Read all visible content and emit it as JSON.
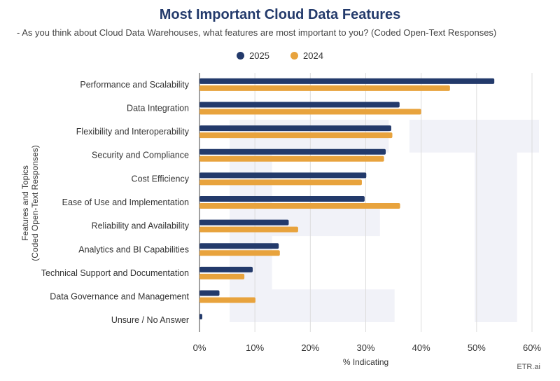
{
  "chart_data": {
    "type": "bar",
    "orientation": "horizontal",
    "title": "Most Important Cloud Data Features",
    "subtitle": "- As you think about Cloud Data Warehouses, what features are most important to you? (Coded Open-Text Responses)",
    "xlabel": "% Indicating",
    "ylabel": "Features and Topics\n(Coded Open-Text Responses)",
    "xlim": [
      0,
      60
    ],
    "xticks": [
      "0%",
      "10%",
      "20%",
      "30%",
      "40%",
      "50%",
      "60%"
    ],
    "grid": true,
    "legend_position": "top-center",
    "categories": [
      "Performance and Scalability",
      "Data Integration",
      "Flexibility and Interoperability",
      "Security and Compliance",
      "Cost Efficiency",
      "Ease of Use and Implementation",
      "Reliability and Availability",
      "Analytics and BI Capabilities",
      "Technical Support and Documentation",
      "Data Governance and Management",
      "Unsure / No Answer"
    ],
    "series": [
      {
        "name": "2025",
        "color": "#233a6b",
        "values": [
          53.2,
          36.1,
          34.6,
          33.6,
          30.1,
          29.8,
          16.1,
          14.3,
          9.6,
          3.6,
          0.5
        ]
      },
      {
        "name": "2024",
        "color": "#e8a33d",
        "values": [
          45.2,
          40.0,
          34.8,
          33.3,
          29.3,
          36.2,
          17.8,
          14.5,
          8.1,
          10.1,
          0
        ]
      }
    ]
  },
  "watermark_text": "ETR",
  "credit": "ETR.ai"
}
